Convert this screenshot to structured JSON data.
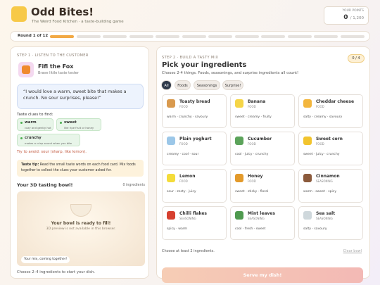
{
  "header": {
    "title": "Odd Bites!",
    "subtitle": "The Weird Food Kitchen · a taste-building game",
    "points_label": "YOUR POINTS",
    "points": 0,
    "points_max": "/ 1,200"
  },
  "round": {
    "label": "Round 1 of 12"
  },
  "customer": {
    "step": "STEP 1 · LISTEN TO THE CUSTOMER",
    "name": "Fifi the Fox",
    "tagline": "Brave little taste tester",
    "quote": "“I would love a warm, sweet bite that makes a crunch. No sour surprises, please!”",
    "clues_title": "Taste clues to find:",
    "clues": [
      {
        "word": "warm",
        "hint": "cozy and gently hot"
      },
      {
        "word": "sweet",
        "hint": "like ripe fruit or honey"
      },
      {
        "word": "crunchy",
        "hint": "makes a crisp sound when you bite"
      }
    ],
    "avoid": "Try to avoid: sour (sharp, like lemon).",
    "tip_label": "Taste tip:",
    "tip": "Read the small taste words on each food card. Mix foods together to collect the clues your customer asked for."
  },
  "bowl": {
    "title": "Your 3D tasting bowl!",
    "count": "0 ingredients",
    "ready": "Your bowl is ready to fill!",
    "note": "3D preview is not available in this browser.",
    "chip": "Your mix, coming together!",
    "hint": "Choose 2–4 ingredients to start your dish."
  },
  "builder": {
    "step": "STEP 2 · BUILD A TASTY MIX",
    "counter": "0 / 4",
    "title": "Pick your ingredients",
    "subtitle": "Choose 2-4 things. Foods, seasonings, and surprise ingredients all count!",
    "tabs": [
      "All",
      "Foods",
      "Seasonings",
      "Surprise!"
    ],
    "cards": [
      {
        "name": "Toasty bread",
        "type": "FOOD",
        "tastes": "warm · crunchy · savoury"
      },
      {
        "name": "Banana",
        "type": "FOOD",
        "tastes": "sweet · creamy · fruity"
      },
      {
        "name": "Cheddar cheese",
        "type": "FOOD",
        "tastes": "salty · creamy · savoury"
      },
      {
        "name": "Plain yoghurt",
        "type": "FOOD",
        "tastes": "creamy · cool · sour"
      },
      {
        "name": "Cucumber",
        "type": "FOOD",
        "tastes": "cool · juicy · crunchy"
      },
      {
        "name": "Sweet corn",
        "type": "FOOD",
        "tastes": "sweet · juicy · crunchy"
      },
      {
        "name": "Lemon",
        "type": "FOOD",
        "tastes": "sour · zesty · juicy"
      },
      {
        "name": "Honey",
        "type": "FOOD",
        "tastes": "sweet · sticky · floral"
      },
      {
        "name": "Cinnamon",
        "type": "SEASONING",
        "tastes": "warm · sweet · spicy"
      },
      {
        "name": "Chilli flakes",
        "type": "SEASONING",
        "tastes": "spicy · warm"
      },
      {
        "name": "Mint leaves",
        "type": "SEASONING",
        "tastes": "cool · fresh · sweet"
      },
      {
        "name": "Sea salt",
        "type": "SEASONING",
        "tastes": "salty · savoury"
      }
    ],
    "footer": "Choose at least 2 ingredients.",
    "clear": "Clear bowl",
    "serve": "Serve my dish!"
  }
}
